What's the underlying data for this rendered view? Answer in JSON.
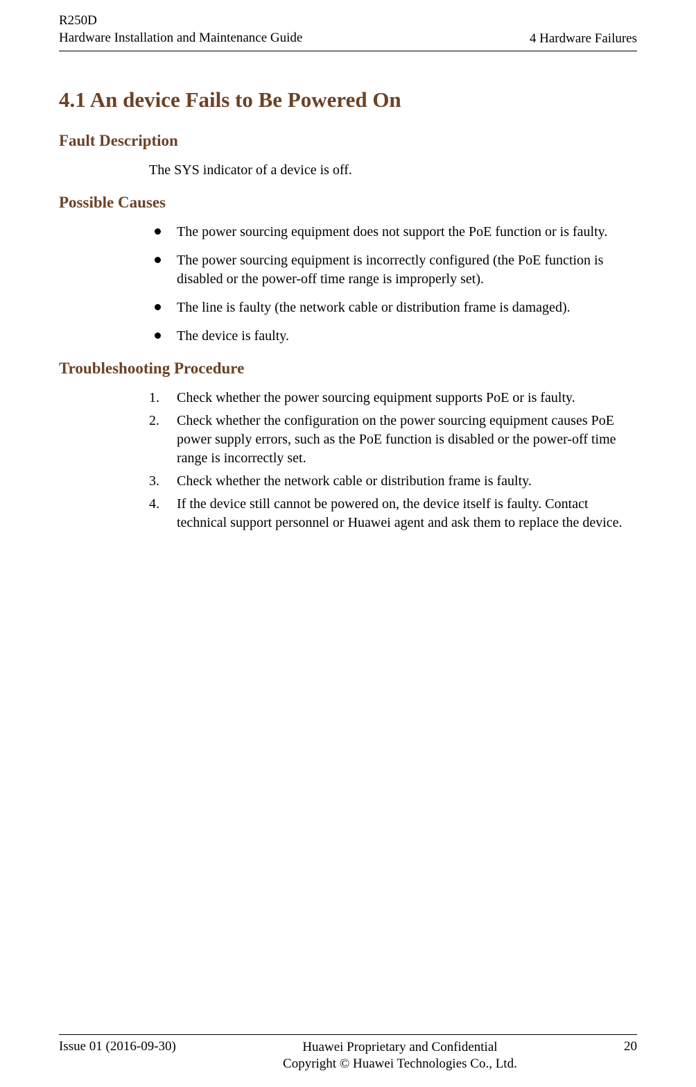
{
  "header": {
    "product": "R250D",
    "guide": "Hardware Installation and Maintenance Guide",
    "chapter": "4 Hardware Failures"
  },
  "section": {
    "title": "4.1 An device Fails to Be Powered On"
  },
  "faultDescription": {
    "heading": "Fault Description",
    "text": "The SYS indicator of a device is off."
  },
  "possibleCauses": {
    "heading": "Possible Causes",
    "items": [
      "The power sourcing equipment does not support the PoE function or is faulty.",
      "The power sourcing equipment is incorrectly configured (the PoE function is disabled or the power-off time range is improperly set).",
      "The line is faulty (the network cable or distribution frame is damaged).",
      "The device is faulty."
    ]
  },
  "troubleshooting": {
    "heading": "Troubleshooting Procedure",
    "items": [
      "Check whether the power sourcing equipment supports PoE or is faulty.",
      "Check whether the configuration on the power sourcing equipment causes PoE power supply errors, such as the PoE function is disabled or the power-off time range is incorrectly set.",
      "Check whether the network cable or distribution frame is faulty.",
      "If the device still cannot be powered on, the device itself is faulty. Contact technical support personnel or Huawei agent and ask them to replace the device."
    ]
  },
  "footer": {
    "issue": "Issue 01 (2016-09-30)",
    "confidential": "Huawei Proprietary and Confidential",
    "copyright": "Copyright © Huawei Technologies Co., Ltd.",
    "page": "20"
  },
  "colors": {
    "heading": "#6b4226",
    "text": "#000000",
    "background": "#ffffff"
  },
  "fonts": {
    "heading": "Book Antiqua, Palatino, serif",
    "body": "Times New Roman, Times, serif"
  }
}
